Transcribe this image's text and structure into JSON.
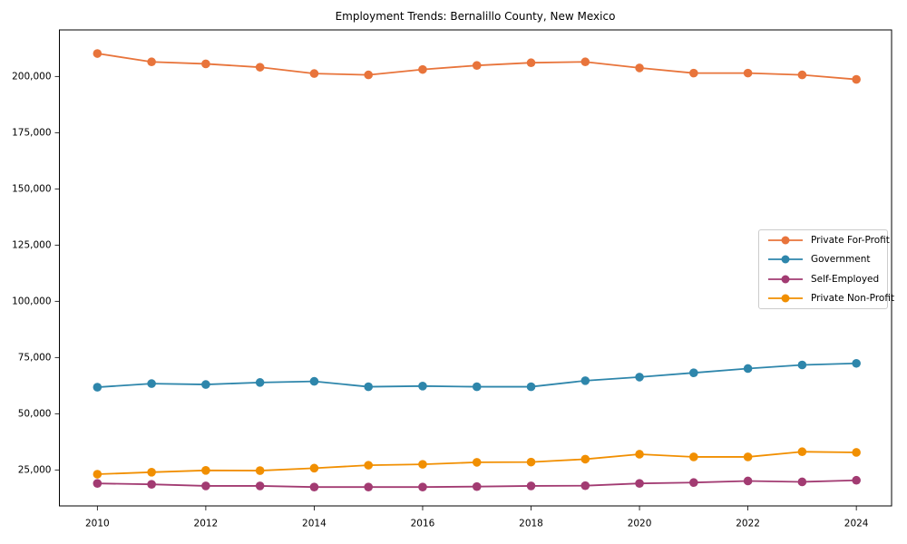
{
  "chart_data": {
    "type": "line",
    "title": "Employment Trends: Bernalillo County, New Mexico",
    "xlabel": "",
    "ylabel": "",
    "x": [
      2010,
      2011,
      2012,
      2013,
      2014,
      2015,
      2016,
      2017,
      2018,
      2019,
      2020,
      2021,
      2022,
      2023,
      2024
    ],
    "series": [
      {
        "name": "Private For-Profit",
        "color": "#E8743B",
        "values": [
          210200,
          206500,
          205600,
          204100,
          201300,
          200700,
          203100,
          204900,
          206100,
          206500,
          203800,
          201500,
          201500,
          200700,
          198700
        ]
      },
      {
        "name": "Government",
        "color": "#2E86AB",
        "values": [
          61800,
          63400,
          63000,
          63900,
          64400,
          62000,
          62300,
          62000,
          62000,
          64700,
          66300,
          68200,
          70100,
          71700,
          72400
        ]
      },
      {
        "name": "Self-Employed",
        "color": "#A23B72",
        "values": [
          19000,
          18600,
          17900,
          17900,
          17400,
          17400,
          17400,
          17600,
          17900,
          18000,
          19000,
          19400,
          20100,
          19700,
          20400
        ]
      },
      {
        "name": "Private Non-Profit",
        "color": "#F18F01",
        "values": [
          23100,
          24000,
          24800,
          24700,
          25800,
          27100,
          27500,
          28400,
          28500,
          29800,
          32000,
          30800,
          30800,
          33100,
          32800
        ]
      }
    ],
    "xlim": [
      2009.3,
      2024.65
    ],
    "ylim": [
      9000,
      220700
    ],
    "xticks": {
      "values": [
        2010,
        2012,
        2014,
        2016,
        2018,
        2020,
        2022,
        2024
      ],
      "labels": [
        "2010",
        "2012",
        "2014",
        "2016",
        "2018",
        "2020",
        "2022",
        "2024"
      ]
    },
    "yticks": {
      "values": [
        25000,
        50000,
        75000,
        100000,
        125000,
        150000,
        175000,
        200000
      ],
      "labels": [
        "25,000",
        "50,000",
        "75,000",
        "100,000",
        "125,000",
        "150,000",
        "175,000",
        "200,000"
      ]
    },
    "grid": false,
    "legend": {
      "position": "center right"
    }
  }
}
